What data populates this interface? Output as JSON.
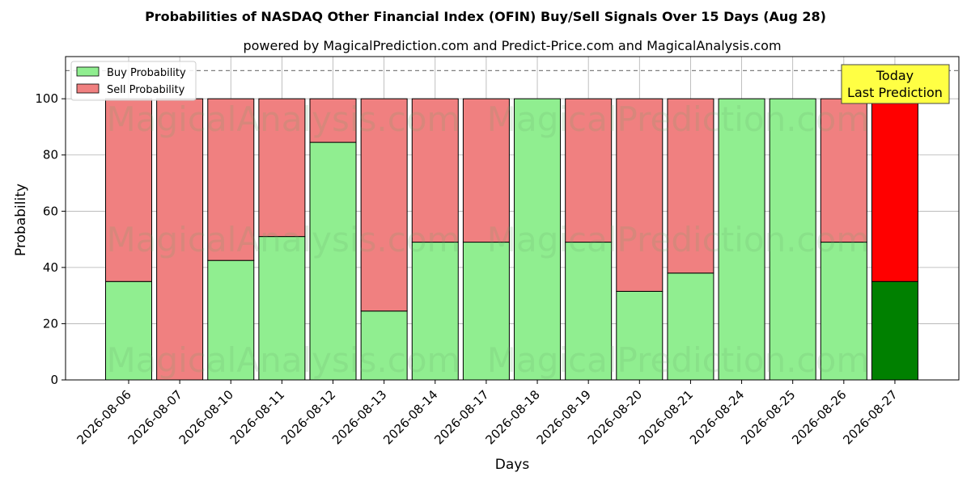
{
  "chart_data": {
    "type": "bar",
    "stacked": true,
    "title": "Probabilities of NASDAQ Other Financial Index (OFIN) Buy/Sell Signals Over 15 Days (Aug 28)",
    "subtitle": "powered by MagicalPrediction.com and Predict-Price.com and MagicalAnalysis.com",
    "xlabel": "Days",
    "ylabel": "Probability",
    "ylim": [
      0,
      115
    ],
    "yticks": [
      0,
      20,
      40,
      60,
      80,
      100
    ],
    "grid": true,
    "legend_position": "top-left",
    "reference_line": 110,
    "categories": [
      "2026-08-06",
      "2026-08-07",
      "2026-08-10",
      "2026-08-11",
      "2026-08-12",
      "2026-08-13",
      "2026-08-14",
      "2026-08-17",
      "2026-08-18",
      "2026-08-19",
      "2026-08-20",
      "2026-08-21",
      "2026-08-24",
      "2026-08-25",
      "2026-08-26",
      "2026-08-27"
    ],
    "series": [
      {
        "name": "Buy Probability",
        "color": "#90ee90",
        "highlight_color": "#008000",
        "values": [
          35,
          0,
          42.5,
          51,
          84.5,
          24.5,
          49,
          49,
          100,
          49,
          31.5,
          38,
          100,
          100,
          49,
          35
        ]
      },
      {
        "name": "Sell Probability",
        "color": "#f08080",
        "highlight_color": "#ff0000",
        "values": [
          65,
          100,
          57.5,
          49,
          15.5,
          75.5,
          51,
          51,
          0,
          51,
          68.5,
          62,
          0,
          0,
          51,
          65
        ]
      }
    ],
    "highlight_index": 15,
    "annotation": {
      "lines": [
        "Today",
        "Last Prediction"
      ],
      "background": "#ffff44"
    },
    "watermarks": [
      "MagicalAnalysis.com",
      "MagicalPrediction.com"
    ]
  }
}
